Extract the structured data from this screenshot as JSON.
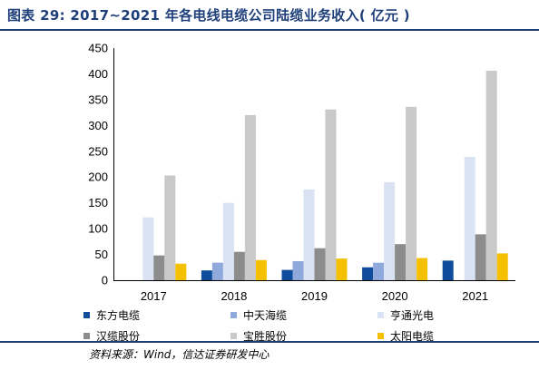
{
  "title": "图表 29: 2017~2021 年各电线电缆公司陆缆业务收入( 亿元 )",
  "source": "资料来源：Wind，信达证券研发中心",
  "chart_data": {
    "type": "bar",
    "categories": [
      "2017",
      "2018",
      "2019",
      "2020",
      "2021"
    ],
    "ylim": [
      0,
      450
    ],
    "yticks": [
      0,
      50,
      100,
      150,
      200,
      250,
      300,
      350,
      400,
      450
    ],
    "grid": false,
    "legend_position": "bottom",
    "series": [
      {
        "name": "东方电缆",
        "color": "#0f4c9b",
        "values": [
          null,
          19,
          20,
          25,
          38
        ]
      },
      {
        "name": "中天海缆",
        "color": "#8fa9dc",
        "values": [
          null,
          34,
          37,
          34,
          null
        ]
      },
      {
        "name": "亨通光电",
        "color": "#dae3f3",
        "values": [
          122,
          150,
          176,
          190,
          239
        ]
      },
      {
        "name": "汉缆股份",
        "color": "#8c8c8c",
        "values": [
          48,
          55,
          62,
          70,
          89
        ]
      },
      {
        "name": "宝胜股份",
        "color": "#c9c9c9",
        "values": [
          203,
          320,
          331,
          336,
          406
        ]
      },
      {
        "name": "太阳电缆",
        "color": "#f5c000",
        "values": [
          32,
          39,
          42,
          43,
          52
        ]
      }
    ]
  }
}
